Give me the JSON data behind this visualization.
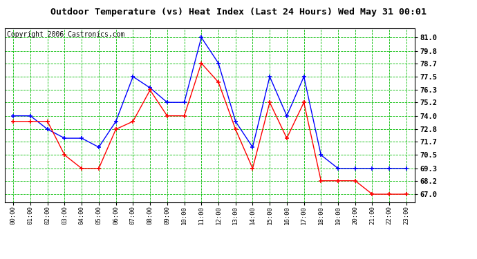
{
  "title": "Outdoor Temperature (vs) Heat Index (Last 24 Hours) Wed May 31 00:01",
  "copyright": "Copyright 2006 Castronics.com",
  "x_labels": [
    "00:00",
    "01:00",
    "02:00",
    "03:00",
    "04:00",
    "05:00",
    "06:00",
    "07:00",
    "08:00",
    "09:00",
    "10:00",
    "11:00",
    "12:00",
    "13:00",
    "14:00",
    "15:00",
    "16:00",
    "17:00",
    "18:00",
    "19:00",
    "20:00",
    "21:00",
    "22:00",
    "23:00"
  ],
  "blue_data": [
    74.0,
    74.0,
    72.8,
    72.0,
    72.0,
    71.2,
    73.5,
    77.5,
    76.5,
    75.2,
    75.2,
    81.0,
    78.7,
    73.5,
    71.2,
    77.5,
    74.0,
    77.5,
    70.5,
    69.3,
    69.3,
    69.3,
    69.3,
    69.3
  ],
  "red_data": [
    73.5,
    73.5,
    73.5,
    70.5,
    69.3,
    69.3,
    72.8,
    73.5,
    76.3,
    74.0,
    74.0,
    78.7,
    77.0,
    72.8,
    69.3,
    75.2,
    72.0,
    75.2,
    68.2,
    68.2,
    68.2,
    67.0,
    67.0,
    67.0
  ],
  "y_ticks": [
    67.0,
    68.2,
    69.3,
    70.5,
    71.7,
    72.8,
    74.0,
    75.2,
    76.3,
    77.5,
    78.7,
    79.8,
    81.0
  ],
  "ylim": [
    66.3,
    81.8
  ],
  "blue_color": "#0000ff",
  "red_color": "#ff0000",
  "bg_color": "#ffffff",
  "grid_color": "#00bb00",
  "title_fontsize": 9.5,
  "copyright_fontsize": 7
}
